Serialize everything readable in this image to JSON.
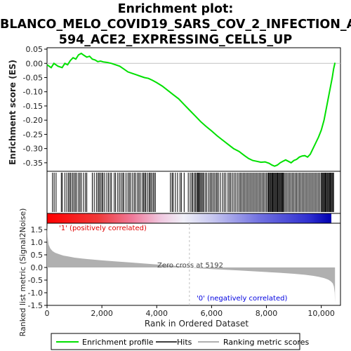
{
  "title_lines": [
    "Enrichment plot:",
    "BLANCO_MELO_COVID19_SARS_COV_2_INFECTION_A",
    "594_ACE2_EXPRESSING_CELLS_UP"
  ],
  "chart_data": [
    {
      "type": "line",
      "name": "enrichment",
      "ylabel": "Enrichment score (ES)",
      "ylim": [
        -0.38,
        0.055
      ],
      "yticks": [
        0.05,
        0.0,
        -0.05,
        -0.1,
        -0.15,
        -0.2,
        -0.25,
        -0.3,
        -0.35
      ],
      "ytick_labels": [
        "0.05",
        "0.00",
        "-0.05",
        "-0.10",
        "-0.15",
        "-0.20",
        "-0.25",
        "-0.30",
        "-0.35"
      ],
      "xlim": [
        0,
        10700
      ],
      "series": [
        {
          "name": "Enrichment profile",
          "color": "#00e000",
          "x": [
            0,
            150,
            250,
            400,
            550,
            650,
            750,
            850,
            950,
            1050,
            1150,
            1250,
            1350,
            1450,
            1550,
            1650,
            1750,
            1850,
            1950,
            2050,
            2200,
            2350,
            2500,
            2650,
            2800,
            2950,
            3100,
            3250,
            3400,
            3550,
            3700,
            3850,
            4000,
            4200,
            4400,
            4600,
            4800,
            5000,
            5200,
            5400,
            5600,
            5800,
            6000,
            6200,
            6400,
            6600,
            6800,
            7000,
            7200,
            7350,
            7500,
            7650,
            7800,
            7950,
            8100,
            8200,
            8300,
            8400,
            8500,
            8600,
            8700,
            8800,
            8900,
            9000,
            9100,
            9200,
            9300,
            9400,
            9500,
            9600,
            9700,
            9800,
            9900,
            10000,
            10100,
            10200,
            10300,
            10400,
            10450,
            10500
          ],
          "y": [
            -0.005,
            -0.015,
            0.0,
            -0.01,
            -0.015,
            0.0,
            -0.005,
            0.01,
            0.02,
            0.015,
            0.03,
            0.035,
            0.028,
            0.022,
            0.025,
            0.015,
            0.012,
            0.006,
            0.008,
            0.005,
            0.003,
            0.0,
            -0.005,
            -0.01,
            -0.02,
            -0.03,
            -0.035,
            -0.04,
            -0.045,
            -0.05,
            -0.053,
            -0.06,
            -0.068,
            -0.08,
            -0.095,
            -0.11,
            -0.125,
            -0.145,
            -0.165,
            -0.185,
            -0.205,
            -0.222,
            -0.238,
            -0.255,
            -0.27,
            -0.285,
            -0.3,
            -0.31,
            -0.325,
            -0.335,
            -0.342,
            -0.345,
            -0.348,
            -0.347,
            -0.352,
            -0.358,
            -0.362,
            -0.358,
            -0.35,
            -0.345,
            -0.34,
            -0.345,
            -0.35,
            -0.342,
            -0.338,
            -0.33,
            -0.326,
            -0.325,
            -0.33,
            -0.32,
            -0.3,
            -0.28,
            -0.26,
            -0.235,
            -0.2,
            -0.15,
            -0.1,
            -0.05,
            -0.02,
            0.002
          ]
        }
      ]
    },
    {
      "type": "bar",
      "name": "hits",
      "ylabel": "",
      "hits": [
        200,
        260,
        330,
        520,
        560,
        650,
        720,
        780,
        830,
        870,
        930,
        980,
        1030,
        1080,
        1150,
        1200,
        1250,
        1330,
        1400,
        1450,
        1650,
        1720,
        1800,
        1860,
        1900,
        1950,
        2000,
        2040,
        2100,
        2180,
        2240,
        2300,
        2350,
        2450,
        2500,
        2580,
        2640,
        2700,
        2760,
        2800,
        2880,
        2950,
        3000,
        3050,
        3120,
        3180,
        3230,
        3300,
        3350,
        3400,
        3470,
        3520,
        3560,
        3600,
        3660,
        3720,
        3760,
        3800,
        3860,
        3900,
        3950,
        4500,
        4560,
        4600,
        4680,
        4760,
        4850,
        4900,
        5000,
        5150,
        5220,
        5280,
        5320,
        5380,
        5420,
        5470,
        5500,
        5530,
        5560,
        5600,
        5640,
        5680,
        5720,
        5780,
        5830,
        5900,
        5950,
        6000,
        6050,
        6100,
        6160,
        6200,
        6250,
        6320,
        6400,
        6460,
        6520,
        6600,
        6650,
        6700,
        6760,
        6820,
        6880,
        6940,
        7000,
        7050,
        7100,
        7150,
        7200,
        7250,
        7300,
        7350,
        7400,
        7450,
        7500,
        7550,
        7600,
        7650,
        7700,
        7750,
        7800,
        7850,
        7900,
        7950,
        8000,
        8050,
        8080,
        8110,
        8140,
        8170,
        8200,
        8230,
        8260,
        8290,
        8320,
        8350,
        8380,
        8410,
        8440,
        8470,
        8500,
        8530,
        8560,
        8590,
        8620,
        8650,
        8700,
        8750,
        8800,
        8850,
        8900,
        8950,
        9000,
        9050,
        9100,
        9150,
        9200,
        9250,
        9300,
        9350,
        9400,
        9450,
        9500,
        9550,
        9600,
        9650,
        9700,
        9750,
        9800,
        9850,
        9900,
        9950,
        10000,
        10030,
        10060,
        10090,
        10120,
        10150,
        10180,
        10210,
        10240,
        10270,
        10300,
        10330,
        10360,
        10390,
        10420,
        10450
      ]
    },
    {
      "type": "area",
      "name": "ranked-metric",
      "xlabel": "Rank in Ordered Dataset",
      "ylabel": "Ranked list metric (Signal2Noise)",
      "ylim": [
        -1.5,
        1.75
      ],
      "yticks": [
        1.5,
        1.0,
        0.5,
        0.0,
        -0.5,
        -1.0,
        -1.5
      ],
      "ytick_labels": [
        "1.5",
        "1.0",
        "0.5",
        "0.0",
        "-0.5",
        "-1.0",
        "-1.5"
      ],
      "xlim": [
        0,
        10700
      ],
      "xticks": [
        0,
        2000,
        4000,
        6000,
        8000,
        10000
      ],
      "xtick_labels": [
        "0",
        "2,000",
        "4,000",
        "6,000",
        "8,000",
        "10,000"
      ],
      "x": [
        0,
        20,
        60,
        120,
        200,
        300,
        450,
        600,
        800,
        1000,
        1300,
        1600,
        2000,
        2500,
        3000,
        3500,
        4000,
        4500,
        5000,
        5192,
        5500,
        6000,
        6500,
        7000,
        7500,
        8000,
        8500,
        9000,
        9400,
        9700,
        9900,
        10100,
        10250,
        10350,
        10420,
        10460,
        10490,
        10500
      ],
      "y": [
        1.7,
        1.2,
        0.9,
        0.75,
        0.65,
        0.58,
        0.52,
        0.47,
        0.43,
        0.39,
        0.35,
        0.32,
        0.28,
        0.24,
        0.2,
        0.16,
        0.12,
        0.08,
        0.03,
        0.0,
        -0.03,
        -0.06,
        -0.09,
        -0.12,
        -0.15,
        -0.18,
        -0.21,
        -0.25,
        -0.29,
        -0.33,
        -0.37,
        -0.42,
        -0.48,
        -0.55,
        -0.63,
        -0.75,
        -1.0,
        -1.4
      ],
      "annotations": [
        "Zero cross at 5192",
        "'1' (positively correlated)",
        "'0' (negatively correlated)"
      ],
      "zero_cross": 5192
    }
  ],
  "legend": [
    {
      "label": "Enrichment profile",
      "color": "#00e000"
    },
    {
      "label": "Hits",
      "color": "#000000"
    },
    {
      "label": "Ranking metric scores",
      "color": "#b0b0b0"
    }
  ],
  "colors": {
    "pos_label": "#e00000",
    "neg_label": "#0000e0",
    "frame": "#000000",
    "zero_line": "#c0c0c0",
    "gray_fill": "#b0b0b0"
  }
}
